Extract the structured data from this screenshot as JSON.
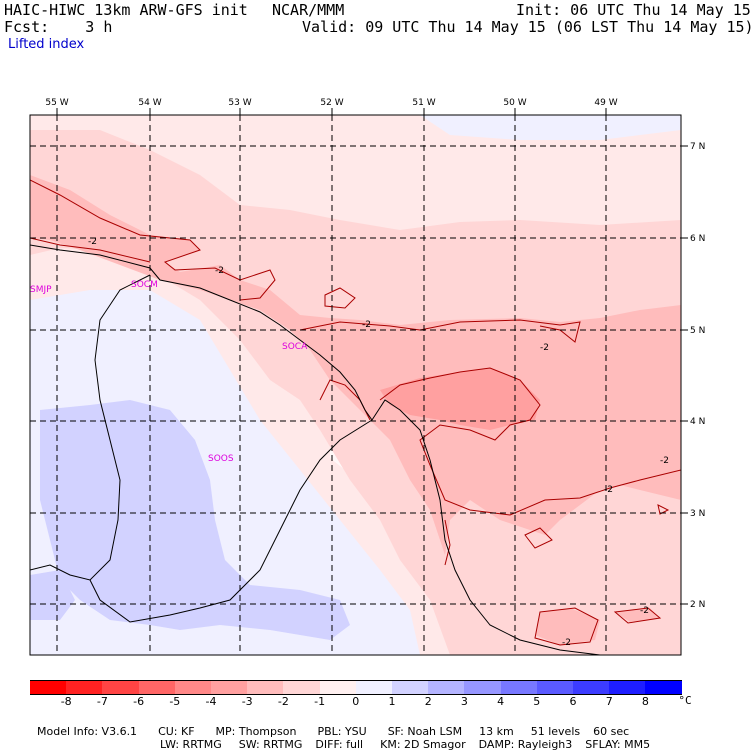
{
  "header": {
    "model": "HAIC-HIWC 13km ARW-GFS init",
    "org": "NCAR/MMM",
    "init": "Init: 06 UTC Thu 14 May 15",
    "fcst": "Fcst:    3 h",
    "valid": "Valid: 09 UTC Thu 14 May 15 (06 LST Thu 14 May 15)",
    "field": "Lifted index"
  },
  "map": {
    "lon_labels": [
      "55 W",
      "54 W",
      "53 W",
      "52 W",
      "51 W",
      "50 W",
      "49 W"
    ],
    "lat_labels": [
      "7 N",
      "6 N",
      "5 N",
      "4 N",
      "3 N",
      "2 N"
    ],
    "stations": [
      "SMJP",
      "SOCM",
      "SOCA",
      "SOOS"
    ],
    "contour_labels": [
      "-2",
      "-2",
      "-2",
      "-2",
      "-2",
      "-2",
      "-2",
      "-2"
    ]
  },
  "colorbar": {
    "unit": "°C",
    "labels": [
      "-8",
      "-7",
      "-6",
      "-5",
      "-4",
      "-3",
      "-2",
      "-1",
      "0",
      "1",
      "2",
      "3",
      "4",
      "5",
      "6",
      "7",
      "8"
    ],
    "colors": [
      "#ff0000",
      "#ff2222",
      "#ff4444",
      "#ff6666",
      "#ff8888",
      "#ffa0a0",
      "#ffbcbc",
      "#ffd6d6",
      "#fff0f0",
      "#f0f0ff",
      "#d2d2ff",
      "#b4b4ff",
      "#9696ff",
      "#7878ff",
      "#5a5aff",
      "#3c3cff",
      "#1e1eff",
      "#0000ff"
    ]
  },
  "info": {
    "line1": [
      "Model Info: V3.6.1",
      "CU: KF",
      "MP: Thompson",
      "PBL: YSU",
      "SF: Noah LSM",
      "13 km",
      "51 levels",
      "60 sec"
    ],
    "line2": [
      "LW: RRTMG",
      "SW: RRTMG",
      "DIFF: full",
      "KM: 2D Smagor",
      "DAMP: Rayleigh3",
      "SFLAY: MM5"
    ]
  }
}
